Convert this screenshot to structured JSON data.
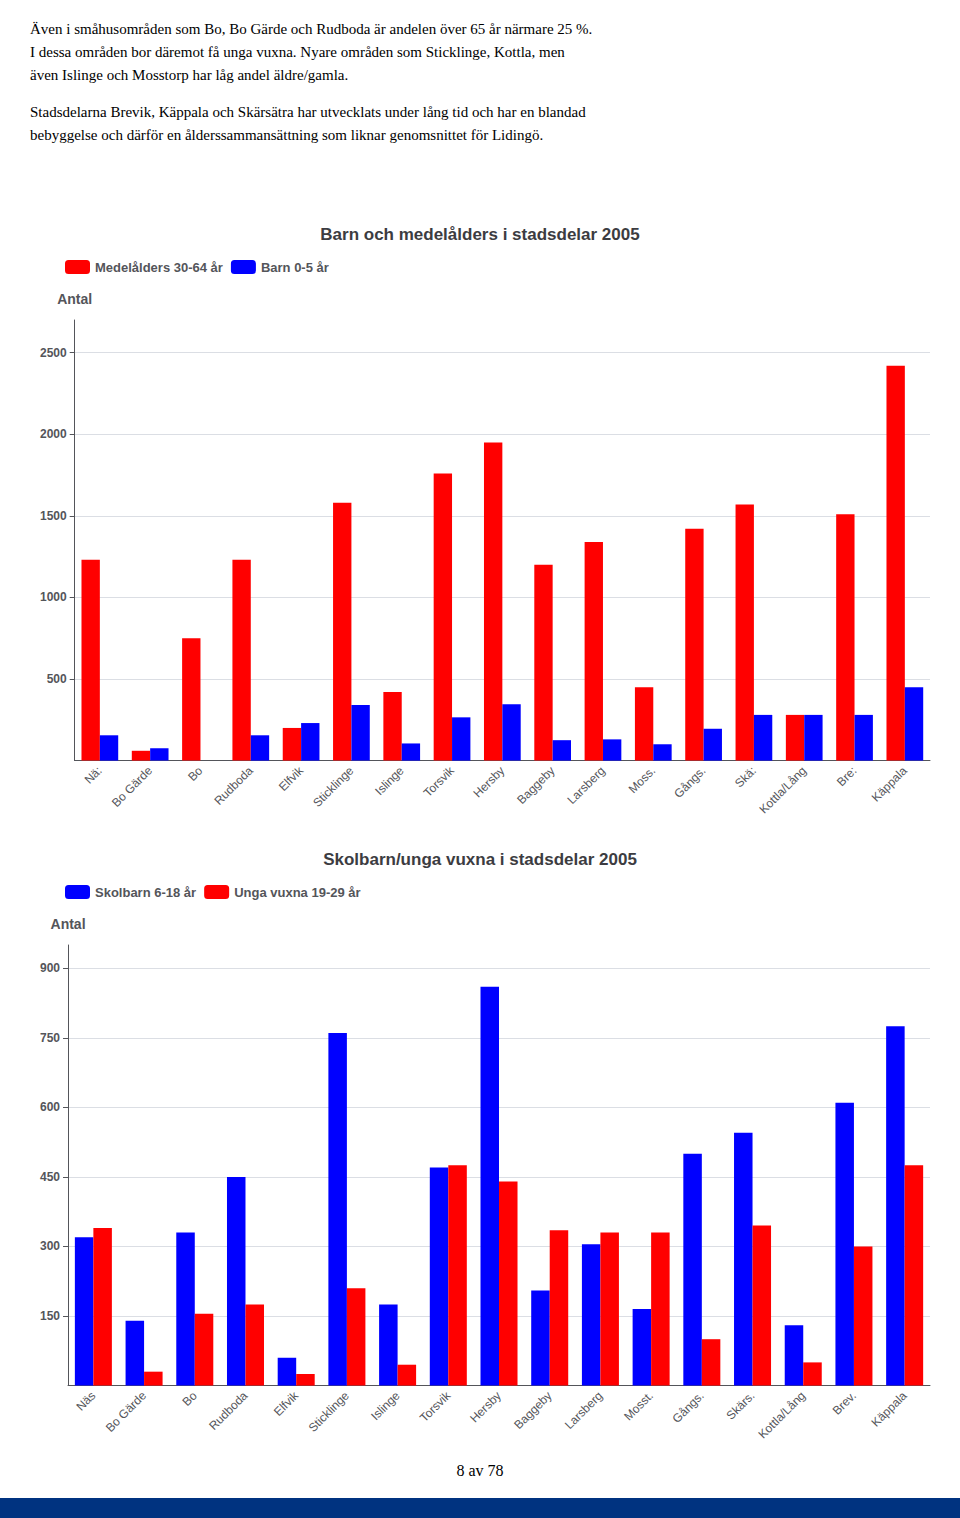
{
  "chart_data": [
    {
      "type": "bar",
      "title": "Barn och medelålders i stadsdelar 2005",
      "ylabel": "Antal",
      "categories": [
        "Nä:",
        "Bo Gärde",
        "Bo",
        "Rudboda",
        "Elfvik",
        "Sticklinge",
        "Islinge",
        "Torsvik",
        "Hersby",
        "Baggeby",
        "Larsberg",
        "Moss.",
        "Gångs.",
        "Skä:",
        "Kottla/Lång",
        "Bre:",
        "Käppala"
      ],
      "series": [
        {
          "name": "Medelålders 30-64 år",
          "color": "#FF0000",
          "values": [
            1230,
            60,
            750,
            1230,
            200,
            1580,
            420,
            1760,
            1950,
            1200,
            1340,
            450,
            1420,
            1570,
            280,
            1510,
            2420
          ]
        },
        {
          "name": "Barn 0-5 år",
          "color": "#0000FF",
          "values": [
            155,
            75,
            0,
            155,
            230,
            340,
            105,
            265,
            345,
            125,
            130,
            100,
            195,
            280,
            280,
            280,
            450
          ]
        }
      ],
      "ylim": [
        0,
        2700
      ],
      "yticks": [
        500,
        1000,
        1500,
        2000,
        2500
      ],
      "grid": true,
      "legend": "upper left"
    },
    {
      "type": "bar",
      "title": "Skolbarn/unga vuxna i stadsdelar 2005",
      "ylabel": "Antal",
      "categories": [
        "Näs",
        "Bo Gärde",
        "Bo",
        "Rudboda",
        "Elfvik",
        "Sticklinge",
        "Islinge",
        "Torsvik",
        "Hersby",
        "Baggeby",
        "Larsberg",
        "Mosst.",
        "Gångs.",
        "Skärs.",
        "Kottla/Lång",
        "Brev.",
        "Käppala"
      ],
      "series": [
        {
          "name": "Skolbarn 6-18 år",
          "color": "#0000FF",
          "values": [
            320,
            140,
            330,
            450,
            60,
            760,
            175,
            470,
            860,
            205,
            305,
            165,
            500,
            545,
            130,
            610,
            775
          ]
        },
        {
          "name": "Unga vuxna 19-29 år",
          "color": "#FF0000",
          "values": [
            340,
            30,
            155,
            175,
            25,
            210,
            45,
            475,
            440,
            335,
            330,
            330,
            100,
            345,
            50,
            300,
            475
          ]
        }
      ],
      "ylim": [
        0,
        950
      ],
      "yticks": [
        150,
        300,
        450,
        600,
        750,
        900
      ],
      "grid": true,
      "legend": "upper left"
    }
  ],
  "text": [
    [
      "Även i småhusområden som Bo, Bo Gärde och Rudboda är andelen över 65 år närmare 25 %.",
      "I dessa områden bor däremot få unga vuxna. Nyare områden som Sticklinge, Kottla, men",
      "även Islinge och Mosstorp har låg andel äldre/gamla."
    ],
    [
      "Stadsdelarna Brevik, Käppala och Skärsätra har utvecklats under lång tid och har en blandad",
      "bebyggelse och därför en ålderssammansättning som liknar genomsnittet för Lidingö."
    ]
  ],
  "page_text": "8 av 78",
  "footer_bar_color": "#003380"
}
